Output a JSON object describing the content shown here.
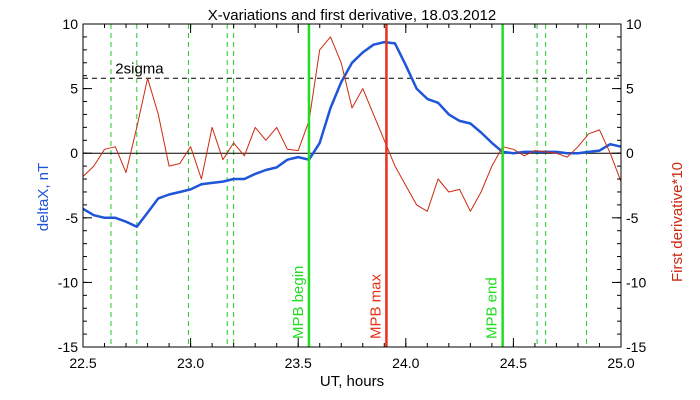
{
  "chart_data": {
    "type": "line",
    "title": "X-variations and first derivative, 18.03.2012",
    "xlabel": "UT, hours",
    "ylabel_left": "deltaX, nT",
    "ylabel_right": "First derivative*10",
    "xlim": [
      22.5,
      25.0
    ],
    "ylim": [
      -15,
      10
    ],
    "xticks": [
      22.5,
      23.0,
      23.5,
      24.0,
      24.5,
      25.0
    ],
    "xtick_labels": [
      "22.5",
      "23.0",
      "23.5",
      "24.0",
      "24.5",
      "25.0"
    ],
    "yticks": [
      -15,
      -10,
      -5,
      0,
      5,
      10
    ],
    "ytick_labels": [
      "-15",
      "-10",
      "-5",
      "0",
      "5",
      "10"
    ],
    "colors": {
      "deltaX": "#1f55d8",
      "derivative": "#cc2a10",
      "mpb": "#22dd22",
      "max": "#e8301a",
      "green_dash": "#22cc22"
    },
    "series": [
      {
        "key": "deltaX",
        "x": [
          22.5,
          22.55,
          22.6,
          22.65,
          22.7,
          22.75,
          22.8,
          22.85,
          22.9,
          22.95,
          23.0,
          23.05,
          23.1,
          23.15,
          23.2,
          23.25,
          23.3,
          23.35,
          23.4,
          23.45,
          23.5,
          23.55,
          23.6,
          23.65,
          23.7,
          23.75,
          23.8,
          23.85,
          23.9,
          23.95,
          24.0,
          24.05,
          24.1,
          24.15,
          24.2,
          24.25,
          24.3,
          24.35,
          24.4,
          24.45,
          24.5,
          24.55,
          24.6,
          24.65,
          24.7,
          24.75,
          24.8,
          24.85,
          24.9,
          24.95,
          25.0
        ],
        "values": [
          -4.3,
          -4.8,
          -5.0,
          -5.0,
          -5.3,
          -5.7,
          -4.6,
          -3.5,
          -3.2,
          -3.0,
          -2.8,
          -2.4,
          -2.3,
          -2.2,
          -2.0,
          -2.0,
          -1.6,
          -1.3,
          -1.1,
          -0.5,
          -0.3,
          -0.5,
          0.8,
          3.5,
          5.5,
          7.0,
          7.8,
          8.4,
          8.6,
          8.5,
          6.8,
          5.0,
          4.2,
          3.9,
          3.0,
          2.5,
          2.3,
          1.6,
          0.8,
          0.1,
          0.0,
          0.1,
          0.1,
          0.1,
          0.1,
          0.0,
          0.0,
          0.1,
          0.2,
          0.7,
          0.5
        ]
      },
      {
        "key": "derivative",
        "x": [
          22.5,
          22.55,
          22.6,
          22.65,
          22.7,
          22.75,
          22.8,
          22.85,
          22.9,
          22.95,
          23.0,
          23.05,
          23.1,
          23.15,
          23.2,
          23.25,
          23.3,
          23.35,
          23.4,
          23.45,
          23.5,
          23.55,
          23.6,
          23.65,
          23.7,
          23.75,
          23.8,
          23.85,
          23.9,
          23.95,
          24.0,
          24.05,
          24.1,
          24.15,
          24.2,
          24.25,
          24.3,
          24.35,
          24.4,
          24.45,
          24.5,
          24.55,
          24.6,
          24.65,
          24.7,
          24.75,
          24.8,
          24.85,
          24.9,
          24.95,
          25.0
        ],
        "values": [
          -1.8,
          -1.0,
          0.3,
          0.5,
          -1.5,
          2.0,
          5.8,
          3.0,
          -1.0,
          -0.8,
          0.5,
          -2.0,
          2.0,
          -0.5,
          0.8,
          -0.2,
          2.0,
          1.0,
          2.0,
          0.3,
          0.2,
          2.5,
          8.0,
          9.0,
          7.0,
          3.5,
          5.0,
          3.0,
          1.0,
          -1.0,
          -2.5,
          -4.0,
          -4.5,
          -2.0,
          -3.0,
          -2.8,
          -4.5,
          -3.0,
          -1.0,
          0.5,
          0.3,
          -0.2,
          0.2,
          0.1,
          0.0,
          -0.3,
          0.5,
          1.5,
          1.8,
          0.0,
          -2.2
        ]
      }
    ],
    "hlines": [
      {
        "key": "zero",
        "y": 0,
        "style": "solid"
      },
      {
        "key": "sigma",
        "y": 5.8,
        "style": "dashed",
        "label": "2sigma"
      }
    ],
    "green_dashed_vlines": [
      22.63,
      22.75,
      22.99,
      23.17,
      23.2,
      24.61,
      24.65,
      24.84
    ],
    "vlines": [
      {
        "key": "mpb_begin",
        "x": 23.55,
        "label": "MPB begin",
        "color": "#22dd22"
      },
      {
        "key": "mpb_max",
        "x": 23.91,
        "label": "MPB max",
        "color": "#e8301a"
      },
      {
        "key": "mpb_end",
        "x": 24.45,
        "label": "MPB end",
        "color": "#22dd22"
      }
    ]
  }
}
